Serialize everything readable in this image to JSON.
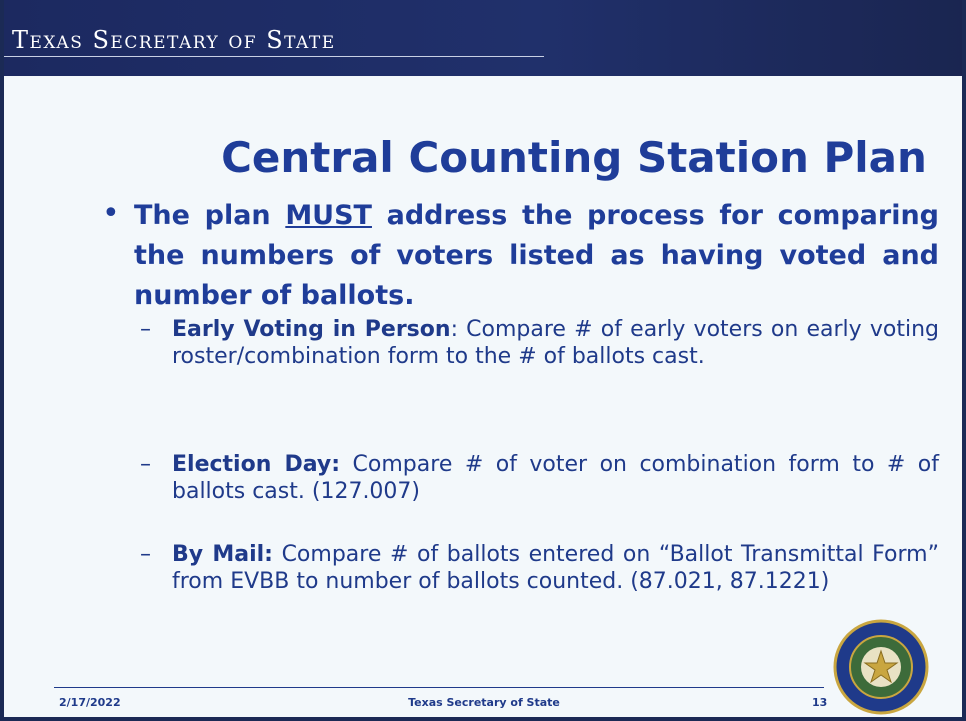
{
  "header": {
    "title": "Texas Secretary of State"
  },
  "slide": {
    "title": "Central Counting Station Plan",
    "bullet": {
      "parts": [
        "The plan ",
        "MUST",
        " address the process for comparing the numbers of voters listed as having voted and number of ballots."
      ]
    },
    "sub_bullets": [
      {
        "label": "Early Voting in Person",
        "text": ":  Compare # of early voters on early voting roster/combination form to the # of ballots cast."
      },
      {
        "label": "Election Day:",
        "text": "  Compare # of voter on combination form to # of ballots cast. (127.007)"
      },
      {
        "label": "By Mail:",
        "text": "  Compare # of ballots entered on “Ballot Transmittal Form” from EVBB to number of ballots counted. (87.021, 87.1221)"
      }
    ]
  },
  "footer": {
    "date": "2/17/2022",
    "center": "Texas Secretary of State",
    "page": "13"
  }
}
